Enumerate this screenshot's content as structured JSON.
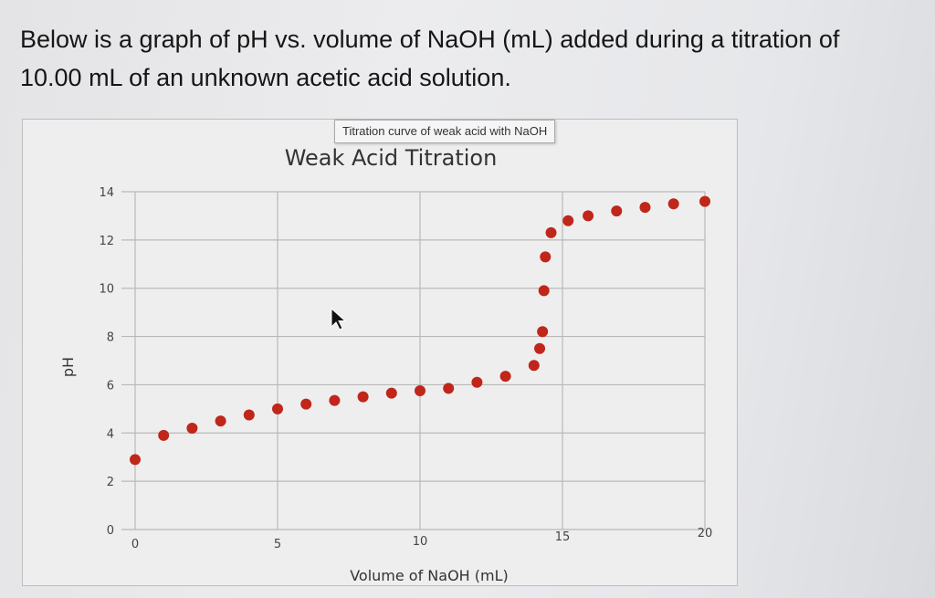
{
  "question": {
    "line1": "Below is a graph of pH vs. volume of NaOH (mL) added during a titration of",
    "line2": "10.00 mL of an unknown acetic acid solution."
  },
  "tooltip": "Titration curve of weak acid with NaOH",
  "chart_data": {
    "type": "scatter",
    "title": "Weak Acid Titration",
    "xlabel": "Volume of NaOH (mL)",
    "ylabel": "pH",
    "xlim": [
      0,
      20
    ],
    "ylim": [
      0,
      14
    ],
    "xticks": [
      "0",
      "5",
      "10",
      "15",
      "20"
    ],
    "yticks": [
      "0",
      "2",
      "4",
      "6",
      "8",
      "10",
      "12",
      "14"
    ],
    "grid": true,
    "marker_color": "#c0261a",
    "x": [
      0,
      1,
      2,
      3,
      4,
      5,
      6,
      7,
      8,
      9,
      10,
      11,
      12,
      13,
      14.0,
      14.2,
      14.3,
      14.35,
      14.4,
      14.6,
      15.2,
      15.9,
      16.9,
      17.9,
      18.9,
      20
    ],
    "y": [
      2.9,
      3.9,
      4.2,
      4.5,
      4.75,
      5.0,
      5.2,
      5.35,
      5.5,
      5.65,
      5.75,
      5.85,
      6.1,
      6.35,
      6.8,
      7.5,
      8.2,
      9.9,
      11.3,
      12.3,
      12.8,
      13.0,
      13.2,
      13.35,
      13.5,
      13.6
    ]
  }
}
